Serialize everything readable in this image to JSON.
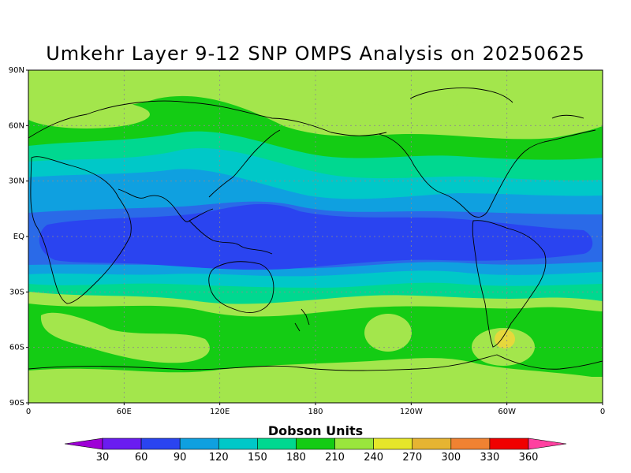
{
  "title": "Umkehr Layer 9-12 SNP OMPS Analysis on 20250625",
  "colorbar": {
    "label": "Dobson Units",
    "ticks": [
      "30",
      "60",
      "90",
      "120",
      "150",
      "180",
      "210",
      "240",
      "270",
      "300",
      "330",
      "360"
    ],
    "colors": [
      "#9e00d6",
      "#6a1cf0",
      "#2a44f0",
      "#0fa0e0",
      "#00c8c8",
      "#00d890",
      "#14cc14",
      "#9ae63c",
      "#e6e62a",
      "#e6b432",
      "#f08232",
      "#f00000",
      "#ff40a0"
    ]
  },
  "axes": {
    "y_ticks": [
      "90N",
      "60N",
      "30N",
      "EQ",
      "30S",
      "60S",
      "90S"
    ],
    "x_ticks": [
      "0",
      "60E",
      "120E",
      "180",
      "120W",
      "60W",
      "0"
    ]
  },
  "map_colors": {
    "band_240": "#a3e64c",
    "band_210": "#14cc14",
    "band_180": "#00d890",
    "band_150": "#00c8c8",
    "band_120": "#0fa0e0",
    "band_90": "#2a6ae8",
    "band_60": "#2a44f0",
    "band_270": "#e6d83c",
    "coast": "#000000",
    "grid": "#8a8a8a"
  }
}
